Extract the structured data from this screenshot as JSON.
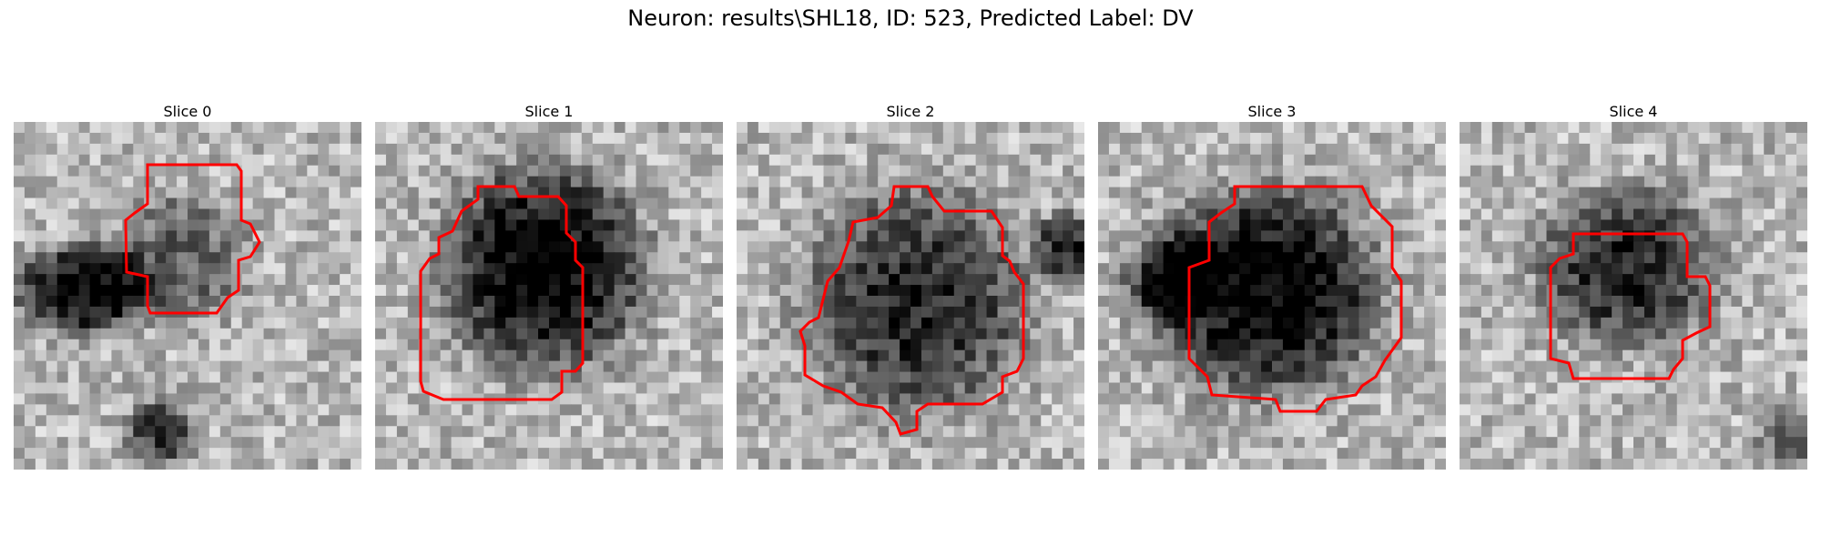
{
  "figure": {
    "title": "Neuron: results\\SHL18, ID: 523, Predicted Label: DV"
  },
  "slices": [
    {
      "title": "Slice 0"
    },
    {
      "title": "Slice 1"
    },
    {
      "title": "Slice 2"
    },
    {
      "title": "Slice 3"
    },
    {
      "title": "Slice 4"
    }
  ],
  "colors": {
    "contour": "#ff0000",
    "background": "#ffffff"
  }
}
